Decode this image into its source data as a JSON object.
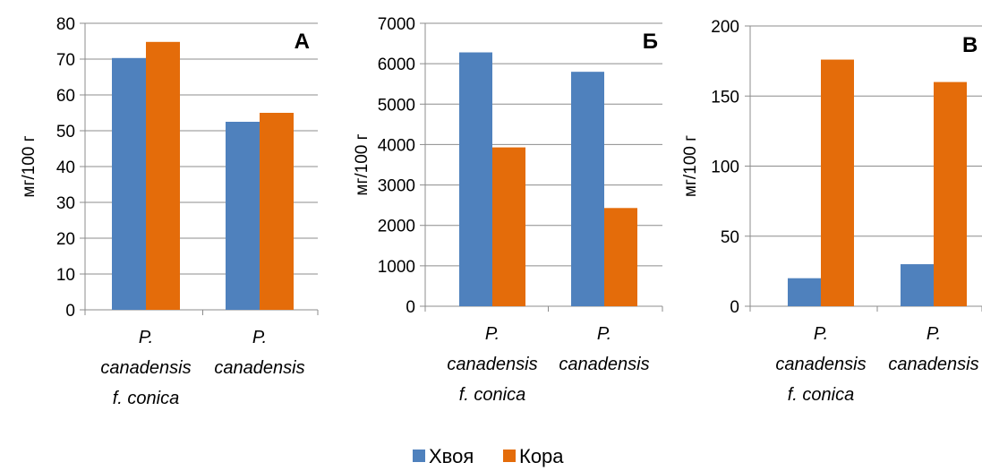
{
  "legend": [
    {
      "label": "Хвоя",
      "color": "#4f81bd"
    },
    {
      "label": "Кора",
      "color": "#e46c0a"
    }
  ],
  "chart_data": [
    {
      "type": "bar",
      "panel_label": "А",
      "ylabel": "мг/100 г",
      "ylim": [
        0,
        80
      ],
      "yticks": [
        "0",
        "10",
        "20",
        "30",
        "40",
        "50",
        "60",
        "70",
        "80"
      ],
      "grid": true,
      "categories": [
        {
          "lines": [
            "P.",
            "canadensis",
            "f. conica"
          ]
        },
        {
          "lines": [
            "P.",
            "canadensis"
          ]
        }
      ],
      "series": [
        {
          "name": "Хвоя",
          "color": "#4f81bd",
          "values": [
            70.3,
            52.5
          ]
        },
        {
          "name": "Кора",
          "color": "#e46c0a",
          "values": [
            74.8,
            55.0
          ]
        }
      ]
    },
    {
      "type": "bar",
      "panel_label": "Б",
      "ylabel": "мг/100 г",
      "ylim": [
        0,
        7000
      ],
      "yticks": [
        "0",
        "1000",
        "2000",
        "3000",
        "4000",
        "5000",
        "6000",
        "7000"
      ],
      "grid": true,
      "categories": [
        {
          "lines": [
            "P.",
            "canadensis",
            "f. conica"
          ]
        },
        {
          "lines": [
            "P.",
            "canadensis"
          ]
        }
      ],
      "series": [
        {
          "name": "Хвоя",
          "color": "#4f81bd",
          "values": [
            6280,
            5800
          ]
        },
        {
          "name": "Кора",
          "color": "#e46c0a",
          "values": [
            3930,
            2430
          ]
        }
      ]
    },
    {
      "type": "bar",
      "panel_label": "В",
      "ylabel": "мг/100 г",
      "ylim": [
        0,
        200
      ],
      "yticks": [
        "0",
        "50",
        "100",
        "150",
        "200"
      ],
      "grid": true,
      "categories": [
        {
          "lines": [
            "P.",
            "canadensis",
            "f. conica"
          ]
        },
        {
          "lines": [
            "P.",
            "canadensis"
          ]
        }
      ],
      "series": [
        {
          "name": "Хвоя",
          "color": "#4f81bd",
          "values": [
            20,
            30
          ]
        },
        {
          "name": "Кора",
          "color": "#e46c0a",
          "values": [
            176,
            160
          ]
        }
      ]
    }
  ]
}
